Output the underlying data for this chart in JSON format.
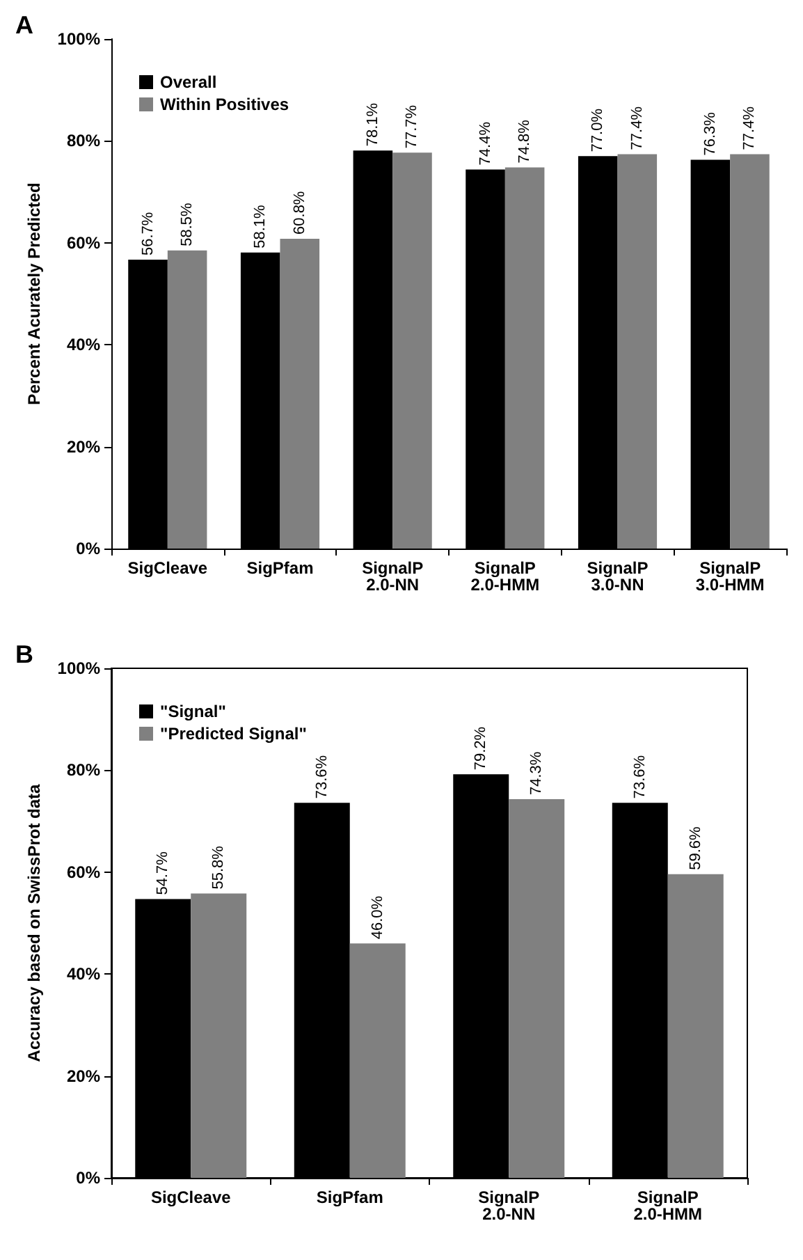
{
  "chart_data": [
    {
      "type": "bar",
      "title": "A",
      "ylabel": "Percent Acurately Predicted",
      "categories": [
        "SigCleave",
        "SigPfam",
        "SignalP 2.0-NN",
        "SignalP 2.0-HMM",
        "SignalP 3.0-NN",
        "SignalP 3.0-HMM"
      ],
      "series": [
        {
          "name": "Overall",
          "color": "#000000",
          "values": [
            56.7,
            58.1,
            78.1,
            74.4,
            77.0,
            76.3
          ],
          "value_labels": [
            "56.7%",
            "58.1%",
            "78.1%",
            "74.4%",
            "77.0%",
            "76.3%"
          ]
        },
        {
          "name": "Within Positives",
          "color": "#808080",
          "values": [
            58.5,
            60.8,
            77.7,
            74.8,
            77.4,
            77.4
          ],
          "value_labels": [
            "58.5%",
            "60.8%",
            "77.7%",
            "74.8%",
            "77.4%",
            "77.4%"
          ]
        }
      ],
      "ylim": [
        0,
        100
      ],
      "yticks": [
        {
          "value": 0,
          "label": "0%"
        },
        {
          "value": 20,
          "label": "20%"
        },
        {
          "value": 40,
          "label": "40%"
        },
        {
          "value": 60,
          "label": "60%"
        },
        {
          "value": 80,
          "label": "80%"
        },
        {
          "value": 100,
          "label": "100%"
        }
      ],
      "grid": false,
      "legend": "top left"
    },
    {
      "type": "bar",
      "title": "B",
      "ylabel": "Accuracy based on SwissProt data",
      "categories": [
        "SigCleave",
        "SigPfam",
        "SignalP 2.0-NN",
        "SignalP 2.0-HMM"
      ],
      "series": [
        {
          "name": "\"Signal\"",
          "color": "#000000",
          "values": [
            54.7,
            73.6,
            79.2,
            73.6
          ],
          "value_labels": [
            "54.7%",
            "73.6%",
            "79.2%",
            "73.6%"
          ]
        },
        {
          "name": "\"Predicted Signal\"",
          "color": "#808080",
          "values": [
            55.8,
            46.0,
            74.3,
            59.6
          ],
          "value_labels": [
            "55.8%",
            "46.0%",
            "74.3%",
            "59.6%"
          ]
        }
      ],
      "ylim": [
        0,
        100
      ],
      "yticks": [
        {
          "value": 0,
          "label": "0%"
        },
        {
          "value": 20,
          "label": "20%"
        },
        {
          "value": 40,
          "label": "40%"
        },
        {
          "value": 60,
          "label": "60%"
        },
        {
          "value": 80,
          "label": "80%"
        },
        {
          "value": 100,
          "label": "100%"
        }
      ],
      "grid": false,
      "legend": "top left"
    }
  ]
}
